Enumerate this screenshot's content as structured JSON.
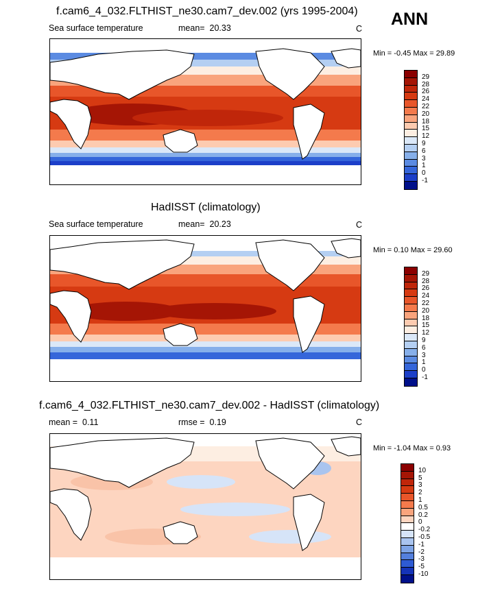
{
  "season": "ANN",
  "panels": [
    {
      "title": "f.cam6_4_032.FLTHIST_ne30.cam7_dev.002 (yrs 1995-2004)",
      "variable": "Sea surface temperature",
      "mean_label": "mean=",
      "mean_value": "20.33",
      "units": "C",
      "min_label": "Min =",
      "min_value": "-0.45",
      "max_label": "Max =",
      "max_value": "29.89"
    },
    {
      "title": "HadISST (climatology)",
      "variable": "Sea surface temperature",
      "mean_label": "mean=",
      "mean_value": "20.23",
      "units": "C",
      "min_label": "Min =",
      "min_value": "0.10",
      "max_label": "Max =",
      "max_value": "29.60"
    },
    {
      "title": "f.cam6_4_032.FLTHIST_ne30.cam7_dev.002 - HadISST (climatology)",
      "mean_label": "mean =",
      "mean_value": "0.11",
      "rmse_label": "rmse =",
      "rmse_value": "0.19",
      "units": "C",
      "min_label": "Min =",
      "min_value": "-1.04",
      "max_label": "Max =",
      "max_value": "0.93"
    }
  ],
  "colorbars": {
    "sst": {
      "labels": [
        "29",
        "28",
        "26",
        "24",
        "22",
        "20",
        "18",
        "15",
        "12",
        "9",
        "6",
        "3",
        "1",
        "0",
        "-1"
      ],
      "colors": [
        "#8b0000",
        "#a51505",
        "#c0260a",
        "#d63a12",
        "#e8562a",
        "#f47a4c",
        "#f9a47d",
        "#fdcbb0",
        "#fdeee2",
        "#dbe8f8",
        "#b4cff2",
        "#86afea",
        "#5b8be2",
        "#3566da",
        "#1c3fc9",
        "#00108a"
      ]
    },
    "diff": {
      "labels": [
        "10",
        "5",
        "3",
        "2",
        "1",
        "0.5",
        "0.2",
        "0",
        "-0.2",
        "-0.5",
        "-1",
        "-2",
        "-3",
        "-5",
        "-10"
      ],
      "colors": [
        "#8b0000",
        "#a51505",
        "#c0260a",
        "#d63a12",
        "#e8562a",
        "#f47a4c",
        "#f9a47d",
        "#fdd5c0",
        "#ffffff",
        "#d6e4f8",
        "#a9c4ef",
        "#7ea4e6",
        "#5480dd",
        "#2e5bd4",
        "#1533b8",
        "#00108a"
      ]
    }
  }
}
